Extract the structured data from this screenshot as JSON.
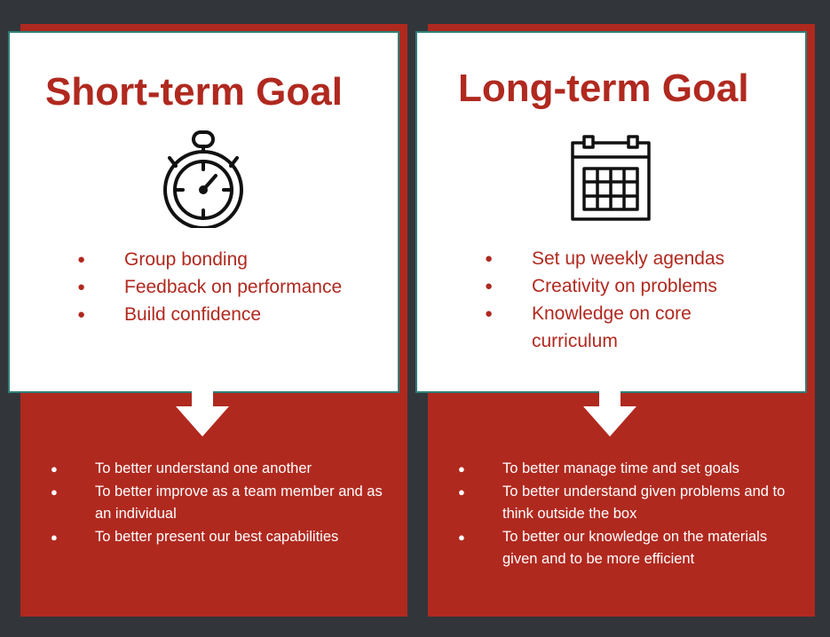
{
  "short_term": {
    "title": "Short-term Goal",
    "icon": "stopwatch-icon",
    "goals": [
      "Group bonding",
      "Feedback on performance",
      "Build confidence"
    ],
    "outcomes": [
      "To better understand one another",
      "To better improve as a team member and as an individual",
      "To better present our best capabilities"
    ]
  },
  "long_term": {
    "title": "Long-term Goal",
    "icon": "calendar-icon",
    "goals": [
      "Set up weekly agendas",
      "Creativity on problems",
      "Knowledge on core curriculum"
    ],
    "outcomes": [
      "To better manage time and set goals",
      "To better understand given problems and to think outside the box",
      "To better our knowledge on the materials given and to be more efficient"
    ]
  },
  "bullet": "●",
  "colors": {
    "background": "#32363b",
    "accent": "#b0291f",
    "card": "#ffffff",
    "card_border": "#2f7f78"
  }
}
